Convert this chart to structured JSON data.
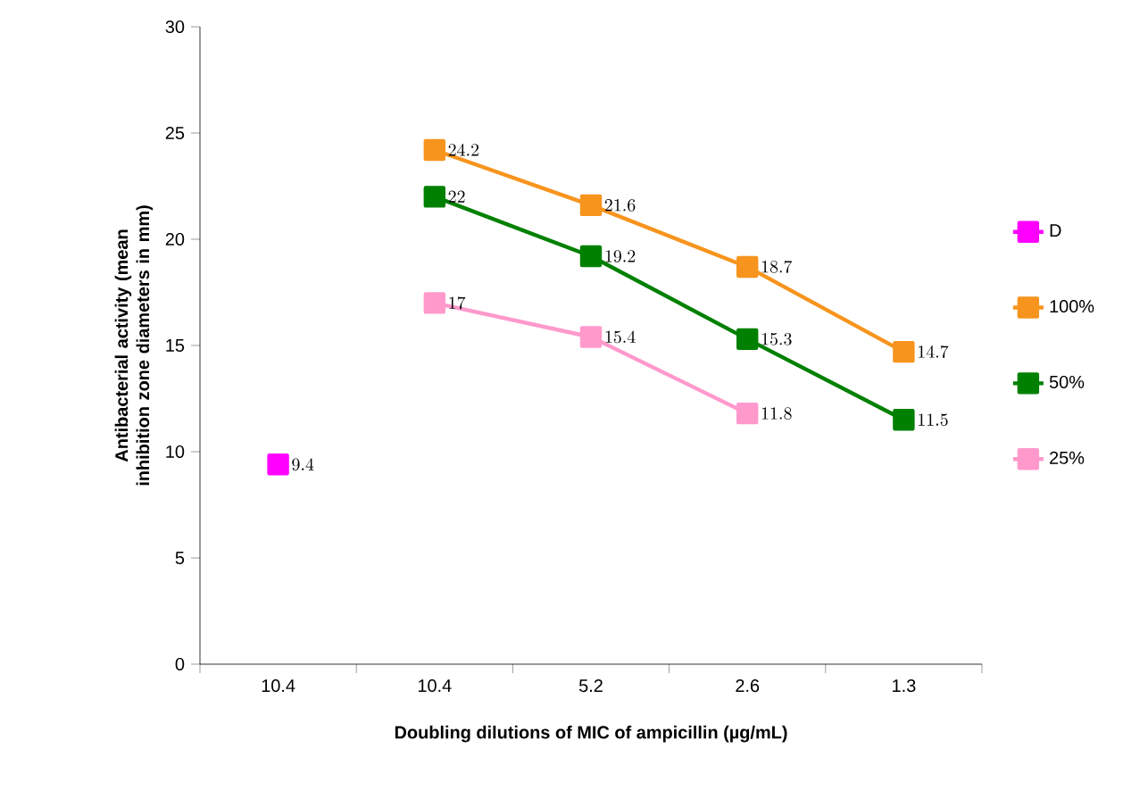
{
  "chart_data": {
    "type": "line",
    "xlabel": "Doubling dilutions of MIC of ampicillin (µg/mL)",
    "ylabel": "Antibacterial activity (mean inhibition zone diameters in mm)",
    "categories": [
      "10.4",
      "10.4",
      "5.2",
      "2.6",
      "1.3"
    ],
    "series": [
      {
        "name": "D",
        "color": "#ff00ff",
        "values": [
          9.4,
          null,
          null,
          null,
          null
        ]
      },
      {
        "name": "100%",
        "color": "#f7941d",
        "values": [
          null,
          24.2,
          21.6,
          18.7,
          14.7
        ]
      },
      {
        "name": "50%",
        "color": "#008000",
        "values": [
          null,
          22,
          19.2,
          15.3,
          11.5
        ]
      },
      {
        "name": "25%",
        "color": "#ff99cc",
        "values": [
          null,
          17,
          15.4,
          11.8,
          null
        ]
      }
    ],
    "ylim": [
      0,
      30
    ],
    "yticks": [
      0,
      5,
      10,
      15,
      20,
      25,
      30
    ],
    "marker": "square",
    "line_style": "solid",
    "legend": "right",
    "data_labels": true
  }
}
